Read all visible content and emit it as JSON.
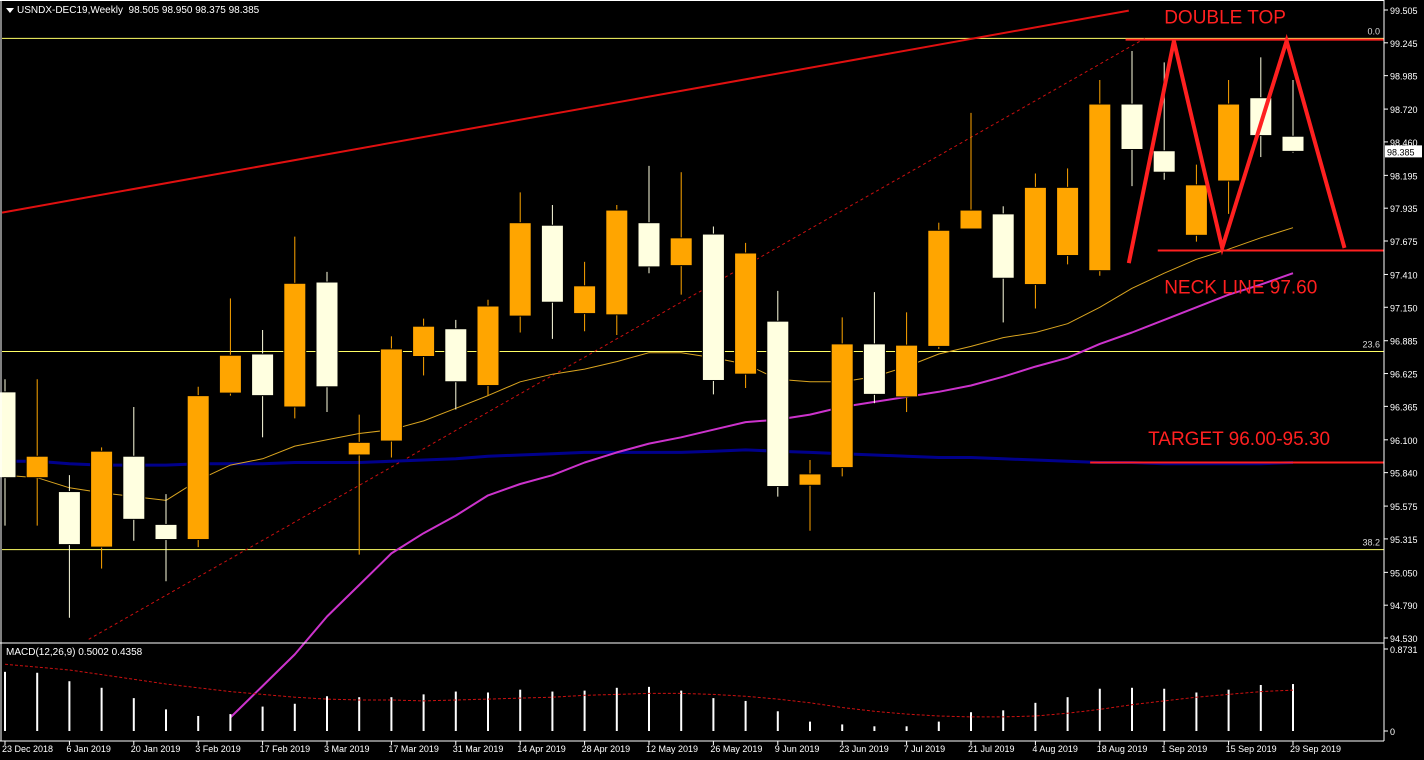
{
  "header": {
    "symbol": "USNDX-DEC19,Weekly",
    "ohlc": "98.505 98.950 98.375 98.385"
  },
  "macd_header": "MACD(12,26,9) 0.5002 0.4358",
  "current_price_label": "98.385",
  "colors": {
    "bull": "#FFA500",
    "bear": "#FFFFE0",
    "ma_fast": "#DAA520",
    "ma_mid": "#CC33CC",
    "ma_slow": "#00008B",
    "annotation": "#FF2020",
    "fib": "#FFFF66"
  },
  "annotations": {
    "double_top": "DOUBLE TOP",
    "neck_line": "NECK LINE 97.60",
    "target": "TARGET 96.00-95.30"
  },
  "chart_data": {
    "type": "candlestick",
    "title": "USNDX-DEC19,Weekly",
    "price_axis_ticks": [
      "99.505",
      "99.245",
      "98.985",
      "98.720",
      "98.460",
      "98.195",
      "97.935",
      "97.675",
      "97.410",
      "97.150",
      "96.885",
      "96.625",
      "96.365",
      "96.100",
      "95.840",
      "95.575",
      "95.315",
      "95.050",
      "94.790",
      "94.530"
    ],
    "ylim": [
      94.53,
      99.505
    ],
    "x_labels": [
      "23 Dec 2018",
      "6 Jan 2019",
      "20 Jan 2019",
      "3 Feb 2019",
      "17 Feb 2019",
      "3 Mar 2019",
      "17 Mar 2019",
      "31 Mar 2019",
      "14 Apr 2019",
      "28 Apr 2019",
      "12 May 2019",
      "26 May 2019",
      "9 Jun 2019",
      "23 Jun 2019",
      "7 Jul 2019",
      "21 Jul 2019",
      "4 Aug 2019",
      "18 Aug 2019",
      "1 Sep 2019",
      "15 Sep 2019",
      "29 Sep 2019"
    ],
    "fib_levels": [
      {
        "label": "0.0",
        "value": 99.28
      },
      {
        "label": "23.6",
        "value": 96.8
      },
      {
        "label": "38.2",
        "value": 95.23
      }
    ],
    "candles": [
      {
        "o": 96.48,
        "h": 96.58,
        "l": 95.42,
        "c": 95.8
      },
      {
        "o": 95.8,
        "h": 96.58,
        "l": 95.42,
        "c": 95.97
      },
      {
        "o": 95.69,
        "h": 95.82,
        "l": 94.69,
        "c": 95.27
      },
      {
        "o": 95.25,
        "h": 96.04,
        "l": 95.08,
        "c": 96.01
      },
      {
        "o": 95.97,
        "h": 96.36,
        "l": 95.3,
        "c": 95.47
      },
      {
        "o": 95.43,
        "h": 95.67,
        "l": 94.98,
        "c": 95.31
      },
      {
        "o": 95.31,
        "h": 96.52,
        "l": 95.25,
        "c": 96.45
      },
      {
        "o": 96.47,
        "h": 97.22,
        "l": 96.45,
        "c": 96.77
      },
      {
        "o": 96.78,
        "h": 96.97,
        "l": 96.12,
        "c": 96.45
      },
      {
        "o": 96.36,
        "h": 97.71,
        "l": 96.27,
        "c": 97.34
      },
      {
        "o": 97.35,
        "h": 97.43,
        "l": 96.32,
        "c": 96.52
      },
      {
        "o": 95.98,
        "h": 96.3,
        "l": 95.19,
        "c": 96.08
      },
      {
        "o": 96.09,
        "h": 96.92,
        "l": 95.96,
        "c": 96.82
      },
      {
        "o": 96.76,
        "h": 97.06,
        "l": 96.61,
        "c": 97.0
      },
      {
        "o": 96.98,
        "h": 97.05,
        "l": 96.34,
        "c": 96.56
      },
      {
        "o": 96.53,
        "h": 97.21,
        "l": 96.45,
        "c": 97.16
      },
      {
        "o": 97.08,
        "h": 98.06,
        "l": 96.95,
        "c": 97.82
      },
      {
        "o": 97.8,
        "h": 97.96,
        "l": 96.9,
        "c": 97.19
      },
      {
        "o": 97.1,
        "h": 97.51,
        "l": 96.96,
        "c": 97.32
      },
      {
        "o": 97.09,
        "h": 97.96,
        "l": 96.93,
        "c": 97.92
      },
      {
        "o": 97.82,
        "h": 98.27,
        "l": 97.42,
        "c": 97.47
      },
      {
        "o": 97.48,
        "h": 98.22,
        "l": 97.25,
        "c": 97.7
      },
      {
        "o": 97.73,
        "h": 97.79,
        "l": 96.46,
        "c": 96.57
      },
      {
        "o": 96.62,
        "h": 97.66,
        "l": 96.51,
        "c": 97.58
      },
      {
        "o": 97.04,
        "h": 97.28,
        "l": 95.65,
        "c": 95.73
      },
      {
        "o": 95.74,
        "h": 95.94,
        "l": 95.38,
        "c": 95.83
      },
      {
        "o": 95.88,
        "h": 97.07,
        "l": 95.81,
        "c": 96.86
      },
      {
        "o": 96.86,
        "h": 97.27,
        "l": 96.39,
        "c": 96.46
      },
      {
        "o": 96.44,
        "h": 97.11,
        "l": 96.32,
        "c": 96.85
      },
      {
        "o": 96.84,
        "h": 97.82,
        "l": 96.82,
        "c": 97.76
      },
      {
        "o": 97.77,
        "h": 98.69,
        "l": 97.77,
        "c": 97.92
      },
      {
        "o": 97.89,
        "h": 97.95,
        "l": 97.03,
        "c": 97.38
      },
      {
        "o": 97.33,
        "h": 98.21,
        "l": 97.14,
        "c": 98.1
      },
      {
        "o": 97.56,
        "h": 98.25,
        "l": 97.49,
        "c": 98.1
      },
      {
        "o": 97.44,
        "h": 98.95,
        "l": 97.4,
        "c": 98.76
      },
      {
        "o": 98.76,
        "h": 99.18,
        "l": 98.11,
        "c": 98.4
      },
      {
        "o": 98.39,
        "h": 99.09,
        "l": 98.16,
        "c": 98.22
      },
      {
        "o": 97.72,
        "h": 98.28,
        "l": 97.67,
        "c": 98.12
      },
      {
        "o": 98.15,
        "h": 98.95,
        "l": 97.89,
        "c": 98.76
      },
      {
        "o": 98.81,
        "h": 99.13,
        "l": 98.34,
        "c": 98.51
      },
      {
        "o": 98.505,
        "h": 98.95,
        "l": 98.375,
        "c": 98.385
      }
    ],
    "ma_fast": [
      95.82,
      95.8,
      95.72,
      95.68,
      95.65,
      95.62,
      95.78,
      95.9,
      95.95,
      96.05,
      96.1,
      96.15,
      96.18,
      96.25,
      96.35,
      96.45,
      96.56,
      96.62,
      96.66,
      96.72,
      96.79,
      96.79,
      96.75,
      96.7,
      96.58,
      96.56,
      96.56,
      96.6,
      96.68,
      96.78,
      96.84,
      96.91,
      96.95,
      97.02,
      97.15,
      97.3,
      97.42,
      97.53,
      97.61,
      97.7,
      97.78
    ],
    "ma_mid": [
      null,
      null,
      null,
      null,
      null,
      null,
      null,
      93.9,
      94.15,
      94.4,
      94.7,
      94.95,
      95.2,
      95.36,
      95.5,
      95.66,
      95.75,
      95.82,
      95.92,
      96.0,
      96.07,
      96.12,
      96.18,
      96.24,
      96.26,
      96.3,
      96.36,
      96.4,
      96.44,
      96.48,
      96.53,
      96.6,
      96.68,
      96.75,
      96.86,
      96.95,
      97.05,
      97.15,
      97.25,
      97.33,
      97.42
    ],
    "ma_slow": [
      95.93,
      95.93,
      95.91,
      95.9,
      95.9,
      95.9,
      95.91,
      95.91,
      95.91,
      95.92,
      95.92,
      95.92,
      95.93,
      95.94,
      95.95,
      95.97,
      95.98,
      95.99,
      96.0,
      96.0,
      96.0,
      96.0,
      96.01,
      96.02,
      96.01,
      96.0,
      95.99,
      95.98,
      95.97,
      95.96,
      95.96,
      95.95,
      95.94,
      95.93,
      95.92,
      95.92,
      95.91,
      95.91,
      95.91,
      95.91,
      95.92
    ],
    "macd_axis_ticks": [
      "0.8731",
      "0"
    ],
    "macd_ylim": [
      0,
      0.8731
    ],
    "macd_hist": [
      0.63,
      0.62,
      0.53,
      0.46,
      0.35,
      0.23,
      0.16,
      0.18,
      0.26,
      0.29,
      0.37,
      0.36,
      0.36,
      0.39,
      0.42,
      0.41,
      0.44,
      0.42,
      0.43,
      0.46,
      0.47,
      0.43,
      0.35,
      0.32,
      0.21,
      0.1,
      0.07,
      0.05,
      0.05,
      0.1,
      0.2,
      0.22,
      0.3,
      0.36,
      0.45,
      0.46,
      0.45,
      0.41,
      0.44,
      0.49,
      0.5
    ],
    "macd_signal": [
      0.71,
      0.68,
      0.65,
      0.6,
      0.55,
      0.5,
      0.46,
      0.42,
      0.39,
      0.36,
      0.34,
      0.33,
      0.33,
      0.32,
      0.33,
      0.34,
      0.35,
      0.36,
      0.38,
      0.39,
      0.4,
      0.4,
      0.39,
      0.37,
      0.34,
      0.3,
      0.25,
      0.21,
      0.18,
      0.16,
      0.15,
      0.15,
      0.16,
      0.19,
      0.23,
      0.28,
      0.32,
      0.36,
      0.39,
      0.42,
      0.4358
    ]
  }
}
